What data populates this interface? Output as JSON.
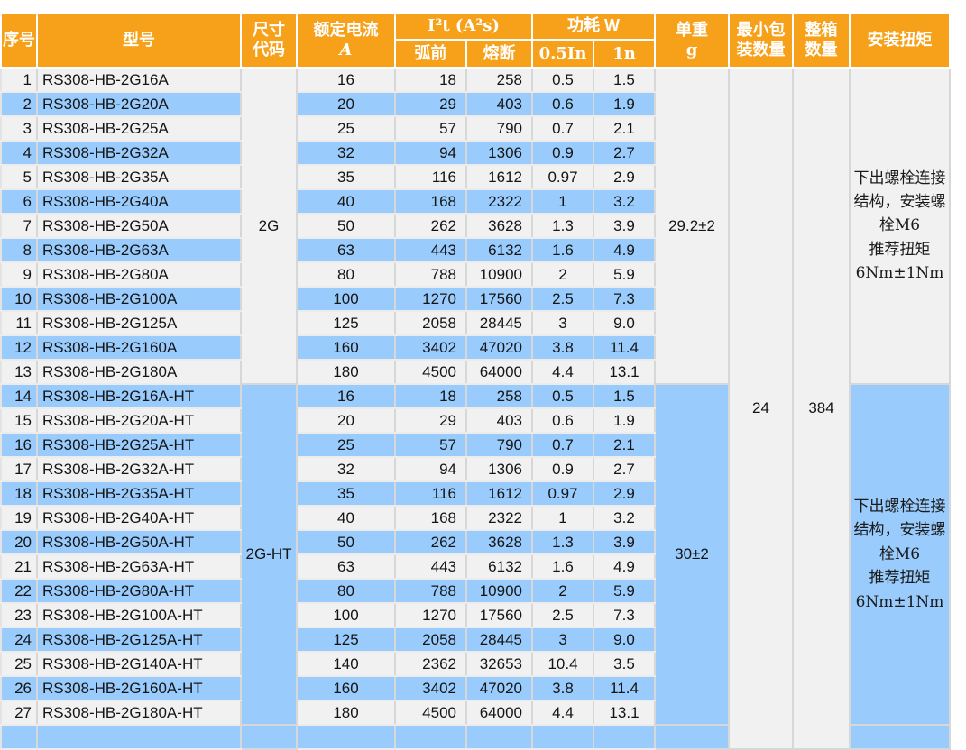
{
  "table": {
    "header": {
      "serial": "序号",
      "model": "型号",
      "size_code_l1": "尺寸",
      "size_code_l2": "代码",
      "rated_current_l1": "额定电流",
      "rated_current_l2": "A",
      "i2t_group": "I²t (A²s)",
      "prearc": "弧前",
      "melt": "熔断",
      "power_group": "功耗 W",
      "power_05": "0.5In",
      "power_1": "1n",
      "weight_l1": "单重",
      "weight_l2": "g",
      "min_pack_l1": "最小包",
      "min_pack_l2": "装数量",
      "box_l1": "整箱",
      "box_l2": "数量",
      "torque": "安装扭矩"
    },
    "min_pack_qty": "24",
    "box_qty": "384",
    "groups": [
      {
        "size_code": "2G",
        "unit_weight": "29.2±2",
        "torque_lines": [
          "下出螺栓连接",
          "结构，安装螺",
          "栓M6",
          "推荐扭矩",
          "6Nm±1Nm"
        ],
        "rows": [
          {
            "no": "1",
            "model": "RS308-HB-2G16A",
            "current": "16",
            "prearc": "18",
            "melt": "258",
            "p05": "0.5",
            "p1": "1.5"
          },
          {
            "no": "2",
            "model": "RS308-HB-2G20A",
            "current": "20",
            "prearc": "29",
            "melt": "403",
            "p05": "0.6",
            "p1": "1.9"
          },
          {
            "no": "3",
            "model": "RS308-HB-2G25A",
            "current": "25",
            "prearc": "57",
            "melt": "790",
            "p05": "0.7",
            "p1": "2.1"
          },
          {
            "no": "4",
            "model": "RS308-HB-2G32A",
            "current": "32",
            "prearc": "94",
            "melt": "1306",
            "p05": "0.9",
            "p1": "2.7"
          },
          {
            "no": "5",
            "model": "RS308-HB-2G35A",
            "current": "35",
            "prearc": "116",
            "melt": "1612",
            "p05": "0.97",
            "p1": "2.9"
          },
          {
            "no": "6",
            "model": "RS308-HB-2G40A",
            "current": "40",
            "prearc": "168",
            "melt": "2322",
            "p05": "1",
            "p1": "3.2"
          },
          {
            "no": "7",
            "model": "RS308-HB-2G50A",
            "current": "50",
            "prearc": "262",
            "melt": "3628",
            "p05": "1.3",
            "p1": "3.9"
          },
          {
            "no": "8",
            "model": "RS308-HB-2G63A",
            "current": "63",
            "prearc": "443",
            "melt": "6132",
            "p05": "1.6",
            "p1": "4.9"
          },
          {
            "no": "9",
            "model": "RS308-HB-2G80A",
            "current": "80",
            "prearc": "788",
            "melt": "10900",
            "p05": "2",
            "p1": "5.9"
          },
          {
            "no": "10",
            "model": "RS308-HB-2G100A",
            "current": "100",
            "prearc": "1270",
            "melt": "17560",
            "p05": "2.5",
            "p1": "7.3"
          },
          {
            "no": "11",
            "model": "RS308-HB-2G125A",
            "current": "125",
            "prearc": "2058",
            "melt": "28445",
            "p05": "3",
            "p1": "9.0"
          },
          {
            "no": "12",
            "model": "RS308-HB-2G160A",
            "current": "160",
            "prearc": "3402",
            "melt": "47020",
            "p05": "3.8",
            "p1": "11.4"
          },
          {
            "no": "13",
            "model": "RS308-HB-2G180A",
            "current": "180",
            "prearc": "4500",
            "melt": "64000",
            "p05": "4.4",
            "p1": "13.1"
          }
        ]
      },
      {
        "size_code": "2G-HT",
        "unit_weight": "30±2",
        "torque_lines": [
          "下出螺栓连接",
          "结构，安装螺",
          "栓M6",
          "推荐扭矩",
          "6Nm±1Nm"
        ],
        "rows": [
          {
            "no": "14",
            "model": "RS308-HB-2G16A-HT",
            "current": "16",
            "prearc": "18",
            "melt": "258",
            "p05": "0.5",
            "p1": "1.5"
          },
          {
            "no": "15",
            "model": "RS308-HB-2G20A-HT",
            "current": "20",
            "prearc": "29",
            "melt": "403",
            "p05": "0.6",
            "p1": "1.9"
          },
          {
            "no": "16",
            "model": "RS308-HB-2G25A-HT",
            "current": "25",
            "prearc": "57",
            "melt": "790",
            "p05": "0.7",
            "p1": "2.1"
          },
          {
            "no": "17",
            "model": "RS308-HB-2G32A-HT",
            "current": "32",
            "prearc": "94",
            "melt": "1306",
            "p05": "0.9",
            "p1": "2.7"
          },
          {
            "no": "18",
            "model": "RS308-HB-2G35A-HT",
            "current": "35",
            "prearc": "116",
            "melt": "1612",
            "p05": "0.97",
            "p1": "2.9"
          },
          {
            "no": "19",
            "model": "RS308-HB-2G40A-HT",
            "current": "40",
            "prearc": "168",
            "melt": "2322",
            "p05": "1",
            "p1": "3.2"
          },
          {
            "no": "20",
            "model": "RS308-HB-2G50A-HT",
            "current": "50",
            "prearc": "262",
            "melt": "3628",
            "p05": "1.3",
            "p1": "3.9"
          },
          {
            "no": "21",
            "model": "RS308-HB-2G63A-HT",
            "current": "63",
            "prearc": "443",
            "melt": "6132",
            "p05": "1.6",
            "p1": "4.9"
          },
          {
            "no": "22",
            "model": "RS308-HB-2G80A-HT",
            "current": "80",
            "prearc": "788",
            "melt": "10900",
            "p05": "2",
            "p1": "5.9"
          },
          {
            "no": "23",
            "model": "RS308-HB-2G100A-HT",
            "current": "100",
            "prearc": "1270",
            "melt": "17560",
            "p05": "2.5",
            "p1": "7.3"
          },
          {
            "no": "24",
            "model": "RS308-HB-2G125A-HT",
            "current": "125",
            "prearc": "2058",
            "melt": "28445",
            "p05": "3",
            "p1": "9.0"
          },
          {
            "no": "25",
            "model": "RS308-HB-2G140A-HT",
            "current": "140",
            "prearc": "2362",
            "melt": "32653",
            "p05": "10.4",
            "p1": "3.5"
          },
          {
            "no": "26",
            "model": "RS308-HB-2G160A-HT",
            "current": "160",
            "prearc": "3402",
            "melt": "47020",
            "p05": "3.8",
            "p1": "11.4"
          },
          {
            "no": "27",
            "model": "RS308-HB-2G180A-HT",
            "current": "180",
            "prearc": "4500",
            "melt": "64000",
            "p05": "4.4",
            "p1": "13.1"
          }
        ]
      },
      {
        "size_code": "",
        "unit_weight": "",
        "torque_lines": [],
        "rows": [
          {
            "no": "",
            "model": "",
            "current": "",
            "prearc": "",
            "melt": "",
            "p05": "",
            "p1": ""
          }
        ]
      }
    ],
    "colors": {
      "header_bg": "#F7A11B",
      "row_blue": "#99CCFD",
      "row_gray": "#F1F1F1"
    }
  }
}
